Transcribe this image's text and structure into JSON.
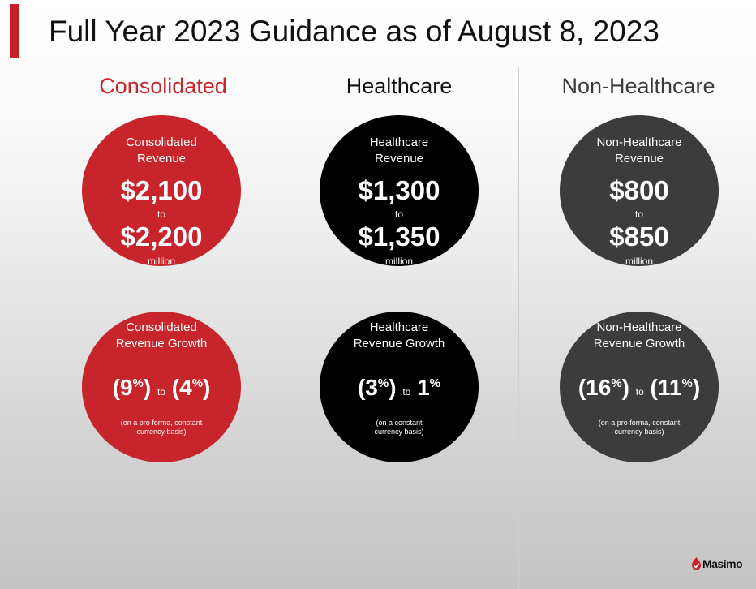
{
  "title": "Full Year 2023 Guidance as of August 8, 2023",
  "columns": [
    {
      "heading": "Consolidated",
      "heading_color": "#c8242c",
      "circle_color": "#c8242c",
      "revenue": {
        "label_line1": "Consolidated",
        "label_line2": "Revenue",
        "low": "$2,100",
        "to": "to",
        "high": "$2,200",
        "unit": "million"
      },
      "growth": {
        "label_line1": "Consolidated",
        "label_line2": "Revenue Growth",
        "low": "9",
        "to": "to",
        "high": "4",
        "pct": "%",
        "note_line1": "(on a pro forma, constant",
        "note_line2": "currency basis)"
      }
    },
    {
      "heading": "Healthcare",
      "heading_color": "#111111",
      "circle_color": "#000000",
      "revenue": {
        "label_line1": "Healthcare",
        "label_line2": "Revenue",
        "low": "$1,300",
        "to": "to",
        "high": "$1,350",
        "unit": "million"
      },
      "growth": {
        "label_line1": "Healthcare",
        "label_line2": "Revenue Growth",
        "low": "3",
        "to": "to",
        "high": "1",
        "pct": "%",
        "note_line1": "(on a constant",
        "note_line2": "currency basis)"
      }
    },
    {
      "heading": "Non-Healthcare",
      "heading_color": "#3a3a3a",
      "circle_color": "#3c3c3c",
      "revenue": {
        "label_line1": "Non-Healthcare",
        "label_line2": "Revenue",
        "low": "$800",
        "to": "to",
        "high": "$850",
        "unit": "million"
      },
      "growth": {
        "label_line1": "Non-Healthcare",
        "label_line2": "Revenue Growth",
        "low": "16",
        "to": "to",
        "high": "11",
        "pct": "%",
        "note_line1": "(on a pro forma, constant",
        "note_line2": "currency basis)"
      }
    }
  ],
  "logo": {
    "text": "Masimo",
    "icon": "masimo-logo-icon",
    "color": "#c8202a"
  }
}
